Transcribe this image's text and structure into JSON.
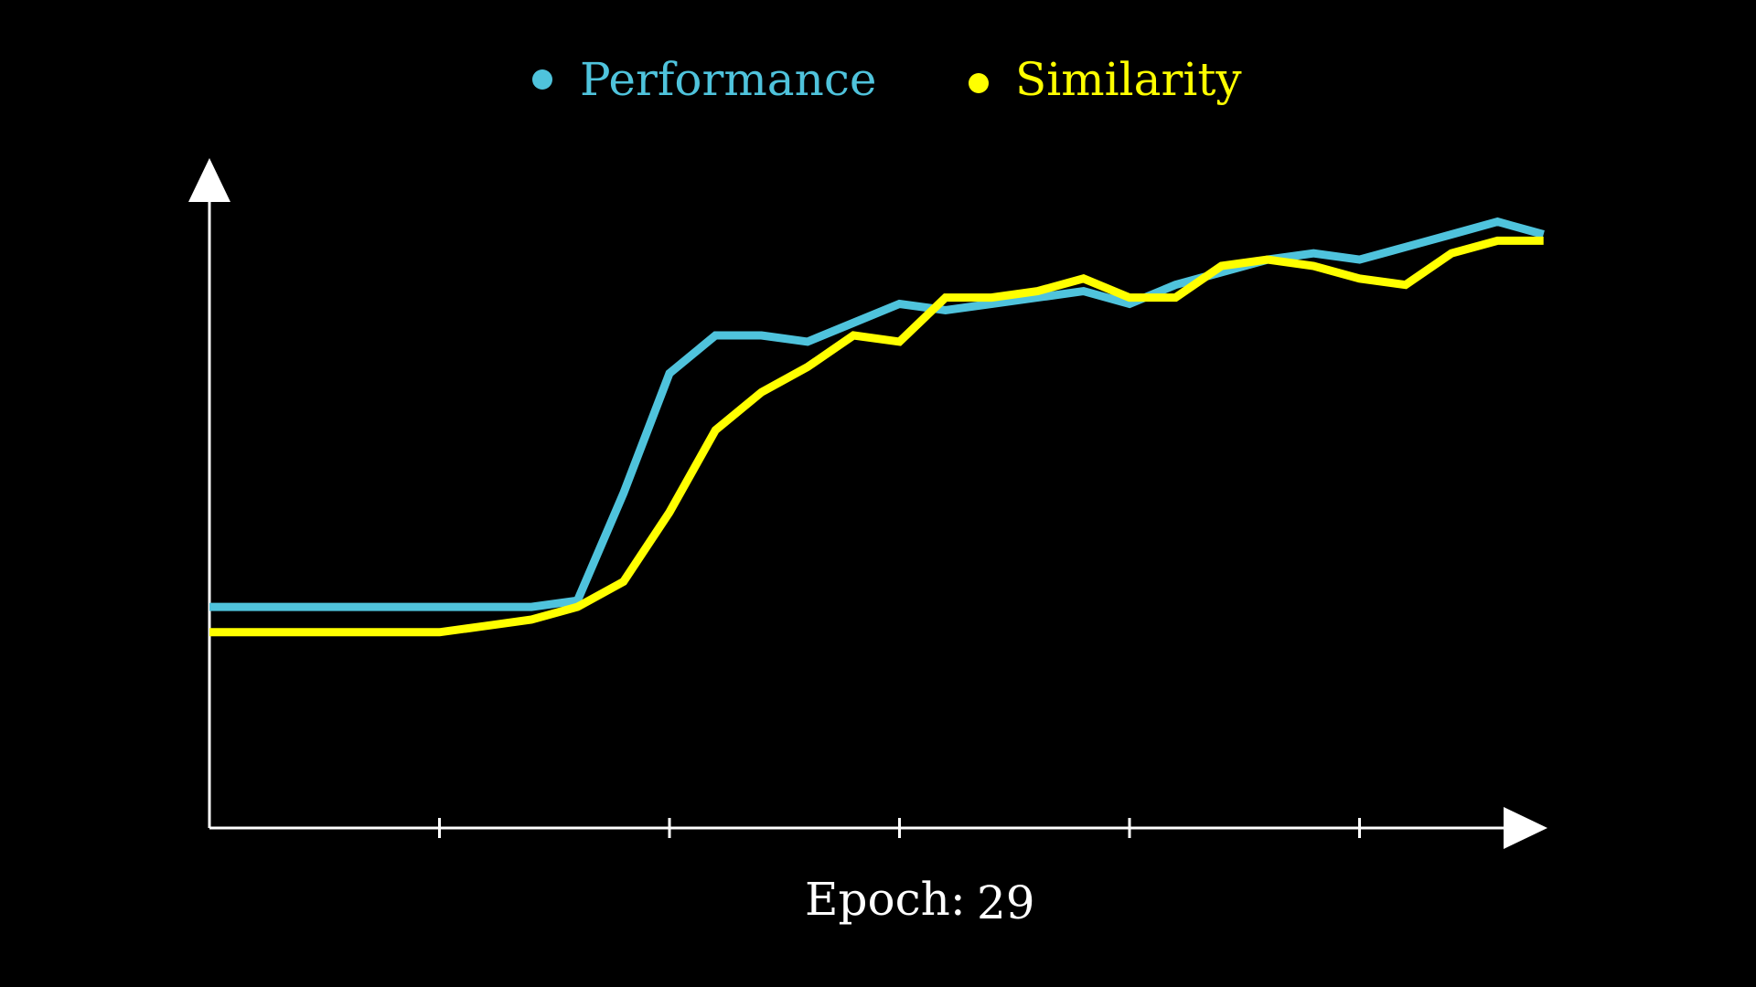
{
  "legend": {
    "performance_label": "Performance",
    "similarity_label": "Similarity"
  },
  "footer": {
    "epoch_label": "Epoch:",
    "epoch_value": "29"
  },
  "colors": {
    "background": "#000000",
    "axis": "#ffffff",
    "performance": "#4fc3dc",
    "similarity": "#ffff00"
  },
  "chart_data": {
    "type": "line",
    "title": "",
    "xlabel": "Epoch",
    "ylabel": "",
    "x": [
      0,
      1,
      2,
      3,
      4,
      5,
      6,
      7,
      8,
      9,
      10,
      11,
      12,
      13,
      14,
      15,
      16,
      17,
      18,
      19,
      20,
      21,
      22,
      23,
      24,
      25,
      26,
      27,
      28,
      29
    ],
    "xlim": [
      0,
      29
    ],
    "ylim": [
      0,
      1
    ],
    "x_ticks": [
      5,
      10,
      15,
      20,
      25
    ],
    "tick_labels_shown": false,
    "grid": false,
    "legend_position": "top-center",
    "series": [
      {
        "name": "Performance",
        "color": "#4fc3dc",
        "values": [
          0.35,
          0.35,
          0.35,
          0.35,
          0.35,
          0.35,
          0.35,
          0.35,
          0.36,
          0.53,
          0.72,
          0.78,
          0.78,
          0.77,
          0.8,
          0.83,
          0.82,
          0.83,
          0.84,
          0.85,
          0.83,
          0.86,
          0.88,
          0.9,
          0.91,
          0.9,
          0.92,
          0.94,
          0.96,
          0.94
        ]
      },
      {
        "name": "Similarity",
        "color": "#ffff00",
        "values": [
          0.31,
          0.31,
          0.31,
          0.31,
          0.31,
          0.31,
          0.32,
          0.33,
          0.35,
          0.39,
          0.5,
          0.63,
          0.69,
          0.73,
          0.78,
          0.77,
          0.84,
          0.84,
          0.85,
          0.87,
          0.84,
          0.84,
          0.89,
          0.9,
          0.89,
          0.87,
          0.86,
          0.91,
          0.93,
          0.93
        ]
      }
    ]
  }
}
